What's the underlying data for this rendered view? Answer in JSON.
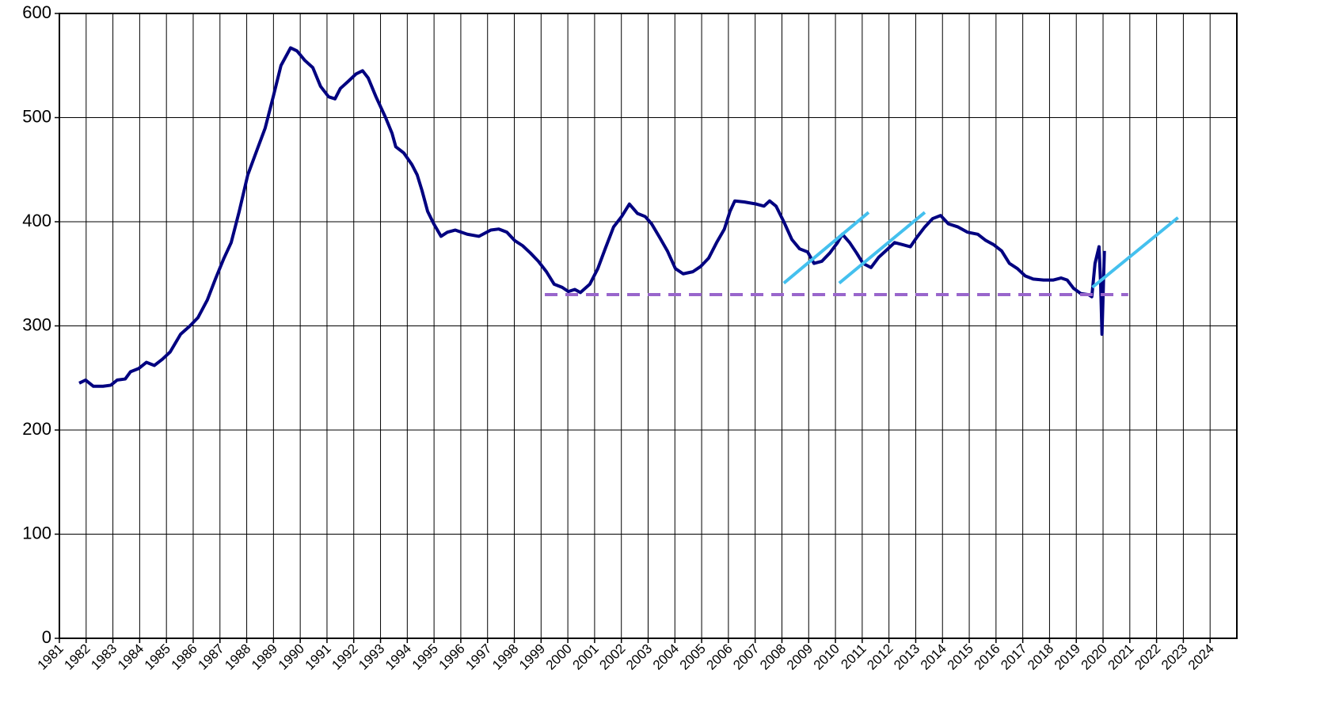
{
  "chart_data": {
    "type": "line",
    "xlim": [
      1981,
      2025
    ],
    "xticks": [
      1981,
      1982,
      1983,
      1984,
      1985,
      1986,
      1987,
      1988,
      1989,
      1990,
      1991,
      1992,
      1993,
      1994,
      1995,
      1996,
      1997,
      1998,
      1999,
      2000,
      2001,
      2002,
      2003,
      2004,
      2005,
      2006,
      2007,
      2008,
      2009,
      2010,
      2011,
      2012,
      2013,
      2014,
      2015,
      2016,
      2017,
      2018,
      2019,
      2020,
      2021,
      2022,
      2023,
      2024
    ],
    "ylim": [
      0,
      600
    ],
    "yticks": [
      0,
      100,
      200,
      300,
      400,
      500,
      600
    ],
    "grid": true,
    "series": [
      {
        "color": "#000080",
        "line_style": "solid",
        "x": [
          1981.74,
          1981.98,
          1982.27,
          1982.63,
          1982.92,
          1983.16,
          1983.46,
          1983.66,
          1983.96,
          1984.25,
          1984.55,
          1984.85,
          1985.14,
          1985.53,
          1985.88,
          1986.18,
          1986.53,
          1986.83,
          1987.15,
          1987.42,
          1987.72,
          1988.04,
          1988.4,
          1988.69,
          1988.99,
          1989.28,
          1989.64,
          1989.88,
          1990.17,
          1990.47,
          1990.76,
          1991.06,
          1991.3,
          1991.5,
          1991.8,
          1992.09,
          1992.33,
          1992.54,
          1992.83,
          1993.19,
          1993.43,
          1993.57,
          1993.87,
          1994.17,
          1994.37,
          1994.55,
          1994.76,
          1994.99,
          1995.26,
          1995.5,
          1995.79,
          1996.24,
          1996.68,
          1997.12,
          1997.42,
          1997.72,
          1998.01,
          1998.31,
          1998.6,
          1998.9,
          1999.2,
          1999.49,
          1999.79,
          2000.02,
          2000.26,
          2000.47,
          2000.82,
          2001.12,
          2001.41,
          2001.71,
          2002.01,
          2002.3,
          2002.6,
          2002.89,
          2003.13,
          2003.43,
          2003.72,
          2004.02,
          2004.31,
          2004.67,
          2004.96,
          2005.26,
          2005.56,
          2005.85,
          2006.06,
          2006.24,
          2006.59,
          2007.04,
          2007.33,
          2007.54,
          2007.78,
          2008.07,
          2008.37,
          2008.66,
          2008.96,
          2009.2,
          2009.49,
          2009.79,
          2010.08,
          2010.26,
          2010.53,
          2010.79,
          2011.03,
          2011.33,
          2011.62,
          2011.92,
          2012.21,
          2012.51,
          2012.8,
          2013.04,
          2013.34,
          2013.63,
          2013.93,
          2014.22,
          2014.58,
          2014.93,
          2015.32,
          2015.62,
          2015.91,
          2016.21,
          2016.5,
          2016.8,
          2017.09,
          2017.39,
          2017.78,
          2018.13,
          2018.43,
          2018.66,
          2018.9,
          2019.17,
          2019.46,
          2019.58,
          2019.7,
          2019.85,
          2019.91,
          2019.96,
          2020.05
        ],
        "values": [
          245,
          248,
          242,
          242,
          243,
          248,
          249,
          256,
          259,
          265,
          262,
          268,
          275,
          292,
          300,
          308,
          325,
          345,
          365,
          380,
          410,
          445,
          470,
          490,
          520,
          550,
          567,
          564,
          555,
          548,
          530,
          520,
          518,
          528,
          535,
          542,
          545,
          538,
          520,
          500,
          485,
          472,
          466,
          455,
          445,
          430,
          410,
          398,
          386,
          390,
          392,
          388,
          386,
          392,
          393,
          390,
          382,
          377,
          370,
          362,
          352,
          340,
          337,
          333,
          335,
          332,
          340,
          355,
          375,
          395,
          405,
          417,
          408,
          405,
          398,
          385,
          372,
          355,
          350,
          352,
          357,
          365,
          380,
          393,
          410,
          420,
          419,
          417,
          415,
          420,
          415,
          400,
          383,
          374,
          371,
          360,
          362,
          370,
          380,
          388,
          380,
          370,
          360,
          356,
          366,
          373,
          380,
          378,
          376,
          385,
          395,
          403,
          406,
          398,
          395,
          390,
          388,
          382,
          378,
          372,
          360,
          355,
          348,
          345,
          344,
          344,
          346,
          344,
          336,
          331,
          330,
          328,
          360,
          376,
          340,
          292,
          372
        ]
      },
      {
        "color": "#9966cc",
        "line_style": "dashed",
        "x": [
          1999.14,
          2020.94
        ],
        "values": [
          330,
          330
        ]
      },
      {
        "color": "#44c0ee",
        "line_style": "solid",
        "x": [
          2008.07,
          2011.24
        ],
        "values": [
          341,
          409
        ]
      },
      {
        "color": "#44c0ee",
        "line_style": "solid",
        "x": [
          2010.14,
          2013.34
        ],
        "values": [
          341,
          409
        ]
      },
      {
        "color": "#44c0ee",
        "line_style": "solid",
        "x": [
          2019.6,
          2022.8
        ],
        "values": [
          337,
          404
        ]
      }
    ]
  }
}
